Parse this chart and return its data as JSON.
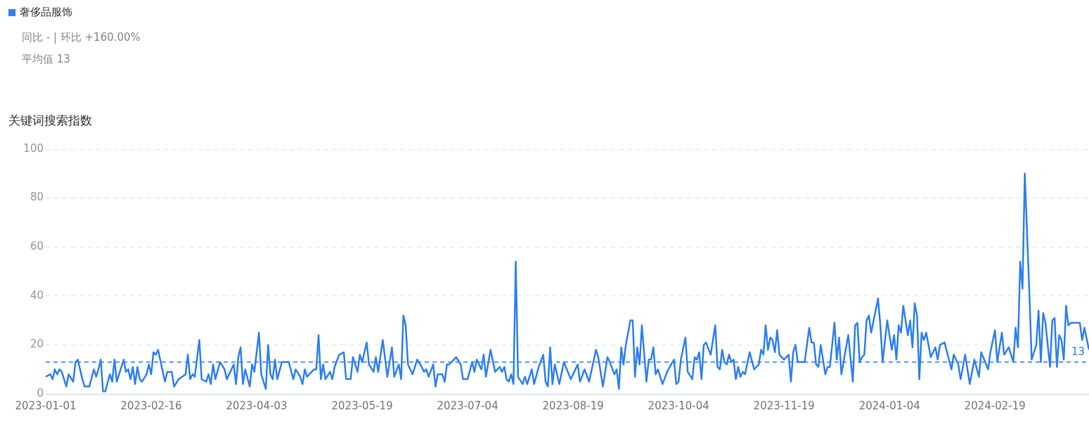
{
  "chart_data": {
    "type": "line",
    "ylabel": "关键词搜索指数",
    "legend": "top left",
    "grid": "y",
    "annotations": [
      "同比 - | 环比 +160.00%",
      "平均值 13"
    ],
    "xlim": [
      "2023-01-01",
      "2024-03-31"
    ],
    "xticks": [
      "2023-01-01",
      "2023-02-16",
      "2023-04-03",
      "2023-05-19",
      "2023-07-04",
      "2023-08-19",
      "2023-10-04",
      "2023-11-19",
      "2024-01-04",
      "2024-02-19"
    ],
    "ylim": [
      0,
      100
    ],
    "yticks": [
      0,
      20,
      40,
      60,
      80,
      100
    ],
    "ref_lines": [
      {
        "axis": "y",
        "value": 13,
        "label": "13",
        "color": "#2f80f5",
        "line_style": "dashed"
      }
    ],
    "x": [
      "2023-01-01",
      "2023-01-03",
      "2023-01-04",
      "2023-01-05",
      "2023-01-06",
      "2023-01-07",
      "2023-01-08",
      "2023-01-10",
      "2023-01-11",
      "2023-01-13",
      "2023-01-14",
      "2023-01-15",
      "2023-01-17",
      "2023-01-18",
      "2023-01-20",
      "2023-01-22",
      "2023-01-23",
      "2023-01-24",
      "2023-01-25",
      "2023-01-26",
      "2023-01-27",
      "2023-01-29",
      "2023-01-30",
      "2023-01-31",
      "2023-02-01",
      "2023-02-04",
      "2023-02-05",
      "2023-02-06",
      "2023-02-07",
      "2023-02-08",
      "2023-02-09",
      "2023-02-10",
      "2023-02-11",
      "2023-02-12",
      "2023-02-14",
      "2023-02-15",
      "2023-02-16",
      "2023-02-17",
      "2023-02-18",
      "2023-02-19",
      "2023-02-22",
      "2023-02-23",
      "2023-02-25",
      "2023-02-26",
      "2023-02-28",
      "2023-03-03",
      "2023-03-04",
      "2023-03-05",
      "2023-03-06",
      "2023-03-07",
      "2023-03-09",
      "2023-03-10",
      "2023-03-12",
      "2023-03-13",
      "2023-03-14",
      "2023-03-15",
      "2023-03-16",
      "2023-03-18",
      "2023-03-20",
      "2023-03-21",
      "2023-03-24",
      "2023-03-25",
      "2023-03-26",
      "2023-03-27",
      "2023-03-28",
      "2023-03-29",
      "2023-03-31",
      "2023-04-01",
      "2023-04-02",
      "2023-04-04",
      "2023-04-05",
      "2023-04-07",
      "2023-04-08",
      "2023-04-09",
      "2023-04-10",
      "2023-04-11",
      "2023-04-12",
      "2023-04-14",
      "2023-04-16",
      "2023-04-17",
      "2023-04-19",
      "2023-04-20",
      "2023-04-22",
      "2023-04-23",
      "2023-04-24",
      "2023-04-25",
      "2023-04-28",
      "2023-04-29",
      "2023-04-30",
      "2023-05-01",
      "2023-05-02",
      "2023-05-03",
      "2023-05-05",
      "2023-05-06",
      "2023-05-07",
      "2023-05-09",
      "2023-05-11",
      "2023-05-12",
      "2023-05-14",
      "2023-05-15",
      "2023-05-17",
      "2023-05-18",
      "2023-05-19",
      "2023-05-21",
      "2023-05-22",
      "2023-05-24",
      "2023-05-25",
      "2023-05-26",
      "2023-05-28",
      "2023-05-30",
      "2023-06-01",
      "2023-06-02",
      "2023-06-04",
      "2023-06-05",
      "2023-06-06",
      "2023-06-07",
      "2023-06-08",
      "2023-06-10",
      "2023-06-12",
      "2023-06-14",
      "2023-06-15",
      "2023-06-16",
      "2023-06-17",
      "2023-06-19",
      "2023-06-20",
      "2023-06-21",
      "2023-06-23",
      "2023-06-24",
      "2023-06-25",
      "2023-06-26",
      "2023-06-29",
      "2023-07-01",
      "2023-07-02",
      "2023-07-04",
      "2023-07-06",
      "2023-07-07",
      "2023-07-08",
      "2023-07-10",
      "2023-07-11",
      "2023-07-12",
      "2023-07-14",
      "2023-07-16",
      "2023-07-18",
      "2023-07-19",
      "2023-07-20",
      "2023-07-21",
      "2023-07-22",
      "2023-07-23",
      "2023-07-24",
      "2023-07-25",
      "2023-07-26",
      "2023-07-28",
      "2023-07-29",
      "2023-07-30",
      "2023-08-01",
      "2023-08-02",
      "2023-08-04",
      "2023-08-06",
      "2023-08-07",
      "2023-08-08",
      "2023-08-09",
      "2023-08-10",
      "2023-08-11",
      "2023-08-13",
      "2023-08-15",
      "2023-08-18",
      "2023-08-21",
      "2023-08-22",
      "2023-08-24",
      "2023-08-26",
      "2023-08-29",
      "2023-08-30",
      "2023-09-01",
      "2023-09-03",
      "2023-09-04",
      "2023-09-06",
      "2023-09-07",
      "2023-09-08",
      "2023-09-09",
      "2023-09-10",
      "2023-09-11",
      "2023-09-13",
      "2023-09-14",
      "2023-09-15",
      "2023-09-16",
      "2023-09-17",
      "2023-09-18",
      "2023-09-20",
      "2023-09-21",
      "2023-09-22",
      "2023-09-23",
      "2023-09-24",
      "2023-09-25",
      "2023-09-27",
      "2023-09-29",
      "2023-10-02",
      "2023-10-03",
      "2023-10-04",
      "2023-10-05",
      "2023-10-07",
      "2023-10-08",
      "2023-10-10",
      "2023-10-11",
      "2023-10-12",
      "2023-10-13",
      "2023-10-14",
      "2023-10-15",
      "2023-10-16",
      "2023-10-18",
      "2023-10-20",
      "2023-10-21",
      "2023-10-22",
      "2023-10-23",
      "2023-10-24",
      "2023-10-25",
      "2023-10-26",
      "2023-10-27",
      "2023-10-28",
      "2023-10-29",
      "2023-10-30",
      "2023-10-31",
      "2023-11-01",
      "2023-11-02",
      "2023-11-04",
      "2023-11-06",
      "2023-11-08",
      "2023-11-09",
      "2023-11-10",
      "2023-11-11",
      "2023-11-12",
      "2023-11-13",
      "2023-11-14",
      "2023-11-15",
      "2023-11-16",
      "2023-11-17",
      "2023-11-19",
      "2023-11-21",
      "2023-11-22",
      "2023-11-23",
      "2023-11-24",
      "2023-11-25",
      "2023-11-27",
      "2023-11-28",
      "2023-11-30",
      "2023-12-01",
      "2023-12-02",
      "2023-12-03",
      "2023-12-04",
      "2023-12-05",
      "2023-12-07",
      "2023-12-08",
      "2023-12-09",
      "2023-12-11",
      "2023-12-12",
      "2023-12-13",
      "2023-12-14",
      "2023-12-17",
      "2023-12-19",
      "2023-12-20",
      "2023-12-21",
      "2023-12-22",
      "2023-12-23",
      "2023-12-24",
      "2023-12-25",
      "2023-12-26",
      "2023-12-27",
      "2023-12-30",
      "2023-12-31",
      "2024-01-01",
      "2024-01-03",
      "2024-01-05",
      "2024-01-06",
      "2024-01-07",
      "2024-01-08",
      "2024-01-09",
      "2024-01-10",
      "2024-01-12",
      "2024-01-13",
      "2024-01-14",
      "2024-01-15",
      "2024-01-16",
      "2024-01-17",
      "2024-01-18",
      "2024-01-19",
      "2024-01-20",
      "2024-01-22",
      "2024-01-24",
      "2024-01-25",
      "2024-01-26",
      "2024-01-28",
      "2024-01-31",
      "2024-02-01",
      "2024-02-03",
      "2024-02-04",
      "2024-02-06",
      "2024-02-08",
      "2024-02-10",
      "2024-02-12",
      "2024-02-13",
      "2024-02-16",
      "2024-02-17",
      "2024-02-19",
      "2024-02-20",
      "2024-02-22",
      "2024-02-23",
      "2024-02-25",
      "2024-02-27",
      "2024-02-28",
      "2024-02-29",
      "2024-03-01",
      "2024-03-02",
      "2024-03-03",
      "2024-03-05",
      "2024-03-06",
      "2024-03-08",
      "2024-03-09",
      "2024-03-10",
      "2024-03-11",
      "2024-03-12",
      "2024-03-14",
      "2024-03-15",
      "2024-03-16",
      "2024-03-17",
      "2024-03-18",
      "2024-03-19",
      "2024-03-20",
      "2024-03-21",
      "2024-03-22",
      "2024-03-23",
      "2024-03-25",
      "2024-03-27",
      "2024-03-28",
      "2024-03-29",
      "2024-03-31"
    ],
    "series": [
      {
        "name": "奢侈品服饰",
        "color": "#2f80f5",
        "values": [
          7,
          8,
          6,
          10,
          8,
          10,
          9,
          3,
          8,
          5,
          13,
          14,
          6,
          3,
          3,
          10,
          7,
          10,
          14,
          1,
          1,
          8,
          5,
          14,
          5,
          14,
          9,
          10,
          6,
          11,
          4,
          11,
          6,
          5,
          8,
          12,
          8,
          17,
          16,
          18,
          5,
          9,
          9,
          3,
          6,
          8,
          16,
          6,
          8,
          7,
          22,
          6,
          5,
          8,
          4,
          12,
          6,
          13,
          10,
          6,
          12,
          4,
          15,
          19,
          4,
          10,
          3,
          12,
          9,
          25,
          8,
          2,
          20,
          8,
          6,
          14,
          6,
          13,
          13,
          13,
          6,
          10,
          7,
          4,
          10,
          7,
          10,
          10,
          24,
          6,
          12,
          6,
          9,
          6,
          11,
          16,
          17,
          6,
          6,
          15,
          9,
          16,
          13,
          21,
          12,
          9,
          15,
          9,
          22,
          7,
          19,
          7,
          12,
          6,
          32,
          28,
          12,
          8,
          14,
          11,
          9,
          10,
          7,
          12,
          3,
          8,
          8,
          5,
          12,
          12,
          15,
          12,
          6,
          6,
          13,
          9,
          14,
          10,
          16,
          7,
          18,
          9,
          11,
          9,
          11,
          6,
          5,
          8,
          4,
          54,
          7,
          4,
          7,
          4,
          10,
          4,
          11,
          16,
          5,
          3,
          19,
          4,
          12,
          4,
          13,
          6,
          12,
          5,
          10,
          5,
          18,
          15,
          3,
          15,
          13,
          8,
          10,
          2,
          19,
          12,
          20,
          30,
          30,
          7,
          19,
          12,
          28,
          5,
          14,
          14,
          19,
          8,
          10,
          4,
          9,
          14,
          4,
          5,
          14,
          23,
          9,
          6,
          15,
          14,
          17,
          6,
          20,
          21,
          16,
          28,
          11,
          10,
          18,
          13,
          12,
          16,
          13,
          14,
          6,
          11,
          7,
          9,
          8,
          17,
          10,
          12,
          18,
          16,
          28,
          18,
          23,
          22,
          17,
          26,
          16,
          14,
          16,
          5,
          17,
          20,
          13,
          13,
          13,
          27,
          21,
          21,
          12,
          11,
          20,
          8,
          11,
          11,
          29,
          14,
          23,
          8,
          24,
          5,
          28,
          29,
          13,
          15,
          16,
          30,
          32,
          25,
          39,
          28,
          13,
          30,
          18,
          24,
          14,
          28,
          25,
          36,
          24,
          30,
          19,
          37,
          32,
          6,
          25,
          22,
          25,
          15,
          19,
          14,
          20,
          21,
          10,
          16,
          12,
          6,
          16,
          4,
          14,
          7,
          17,
          10,
          17,
          26,
          13,
          25,
          16,
          19,
          13,
          27,
          19,
          54,
          43,
          90,
          41,
          14,
          20,
          34,
          13,
          33,
          29,
          11,
          30,
          31,
          11,
          24,
          22,
          14,
          36,
          28,
          29,
          29,
          29,
          22,
          27,
          18
        ]
      }
    ]
  }
}
